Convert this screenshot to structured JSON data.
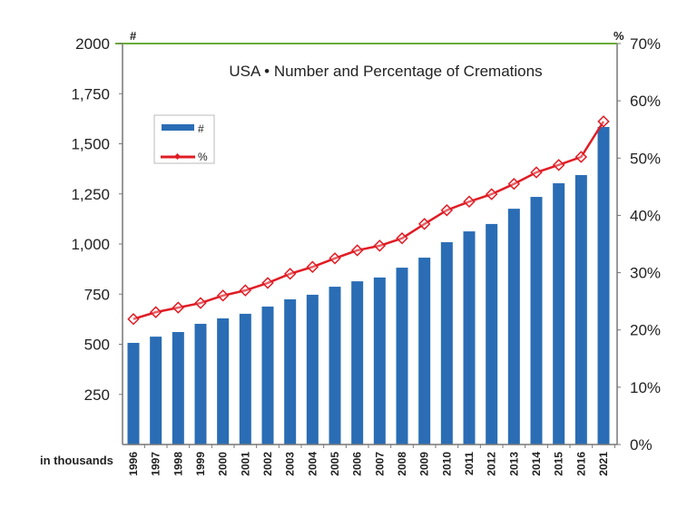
{
  "chart_data": {
    "type": "bar+line",
    "title": "USA • Number and Percentage of Cremations",
    "left_axis": {
      "unit_label": "#",
      "note": "in thousands",
      "ylim": [
        0,
        2000
      ],
      "ticks": [
        "250",
        "500",
        "750",
        "1,000",
        "1,250",
        "1,500",
        "1,750",
        "2000"
      ]
    },
    "right_axis": {
      "unit_label": "%",
      "ylim": [
        0,
        70
      ],
      "ticks": [
        "0%",
        "10%",
        "20%",
        "30%",
        "40%",
        "50%",
        "60%",
        "70%"
      ]
    },
    "categories": [
      "1996",
      "1997",
      "1998",
      "1999",
      "2000",
      "2001",
      "2002",
      "2003",
      "2004",
      "2005",
      "2006",
      "2007",
      "2008",
      "2009",
      "2010",
      "2011",
      "2012",
      "2013",
      "2014",
      "2015",
      "2016",
      "2021"
    ],
    "series": [
      {
        "name": "#",
        "type": "bar",
        "axis": "left",
        "color": "#2a6db5",
        "values": [
          507,
          538,
          561,
          602,
          629,
          652,
          688,
          724,
          747,
          787,
          814,
          833,
          882,
          932,
          1009,
          1063,
          1100,
          1176,
          1235,
          1303,
          1344,
          1584
        ]
      },
      {
        "name": "%",
        "type": "line",
        "axis": "right",
        "color": "#e01c24",
        "values": [
          21.9,
          23.1,
          23.9,
          24.7,
          26.0,
          26.9,
          28.2,
          29.8,
          31.0,
          32.5,
          33.9,
          34.7,
          36.0,
          38.5,
          40.9,
          42.4,
          43.7,
          45.5,
          47.5,
          48.8,
          50.2,
          56.4
        ]
      }
    ],
    "legend": "top-left",
    "grid": false
  }
}
